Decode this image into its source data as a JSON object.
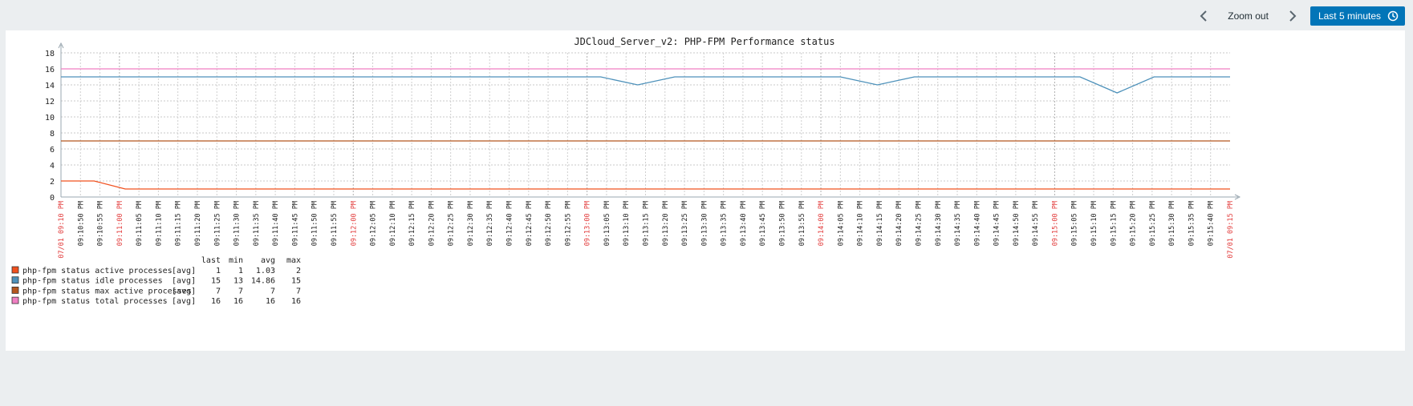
{
  "toolbar": {
    "zoom_out_label": "Zoom out",
    "time_range_label": "Last 5 minutes",
    "prev_icon": "chevron-left-icon",
    "next_icon": "chevron-right-icon",
    "clock_icon": "clock-icon"
  },
  "chart_data": {
    "type": "line",
    "title": "JDCloud_Server_v2: PHP-FPM Performance status",
    "ylim": [
      0,
      18
    ],
    "yticks": [
      "0",
      "2",
      "4",
      "6",
      "8",
      "10",
      "12",
      "14",
      "16",
      "18"
    ],
    "grid": true,
    "x_labels": [
      {
        "label": "07/01 09:10 PM",
        "major": true
      },
      {
        "label": "09:10:50 PM",
        "major": false
      },
      {
        "label": "09:10:55 PM",
        "major": false
      },
      {
        "label": "09:11:00 PM",
        "major": true
      },
      {
        "label": "09:11:05 PM",
        "major": false
      },
      {
        "label": "09:11:10 PM",
        "major": false
      },
      {
        "label": "09:11:15 PM",
        "major": false
      },
      {
        "label": "09:11:20 PM",
        "major": false
      },
      {
        "label": "09:11:25 PM",
        "major": false
      },
      {
        "label": "09:11:30 PM",
        "major": false
      },
      {
        "label": "09:11:35 PM",
        "major": false
      },
      {
        "label": "09:11:40 PM",
        "major": false
      },
      {
        "label": "09:11:45 PM",
        "major": false
      },
      {
        "label": "09:11:50 PM",
        "major": false
      },
      {
        "label": "09:11:55 PM",
        "major": false
      },
      {
        "label": "09:12:00 PM",
        "major": true
      },
      {
        "label": "09:12:05 PM",
        "major": false
      },
      {
        "label": "09:12:10 PM",
        "major": false
      },
      {
        "label": "09:12:15 PM",
        "major": false
      },
      {
        "label": "09:12:20 PM",
        "major": false
      },
      {
        "label": "09:12:25 PM",
        "major": false
      },
      {
        "label": "09:12:30 PM",
        "major": false
      },
      {
        "label": "09:12:35 PM",
        "major": false
      },
      {
        "label": "09:12:40 PM",
        "major": false
      },
      {
        "label": "09:12:45 PM",
        "major": false
      },
      {
        "label": "09:12:50 PM",
        "major": false
      },
      {
        "label": "09:12:55 PM",
        "major": false
      },
      {
        "label": "09:13:00 PM",
        "major": true
      },
      {
        "label": "09:13:05 PM",
        "major": false
      },
      {
        "label": "09:13:10 PM",
        "major": false
      },
      {
        "label": "09:13:15 PM",
        "major": false
      },
      {
        "label": "09:13:20 PM",
        "major": false
      },
      {
        "label": "09:13:25 PM",
        "major": false
      },
      {
        "label": "09:13:30 PM",
        "major": false
      },
      {
        "label": "09:13:35 PM",
        "major": false
      },
      {
        "label": "09:13:40 PM",
        "major": false
      },
      {
        "label": "09:13:45 PM",
        "major": false
      },
      {
        "label": "09:13:50 PM",
        "major": false
      },
      {
        "label": "09:13:55 PM",
        "major": false
      },
      {
        "label": "09:14:00 PM",
        "major": true
      },
      {
        "label": "09:14:05 PM",
        "major": false
      },
      {
        "label": "09:14:10 PM",
        "major": false
      },
      {
        "label": "09:14:15 PM",
        "major": false
      },
      {
        "label": "09:14:20 PM",
        "major": false
      },
      {
        "label": "09:14:25 PM",
        "major": false
      },
      {
        "label": "09:14:30 PM",
        "major": false
      },
      {
        "label": "09:14:35 PM",
        "major": false
      },
      {
        "label": "09:14:40 PM",
        "major": false
      },
      {
        "label": "09:14:45 PM",
        "major": false
      },
      {
        "label": "09:14:50 PM",
        "major": false
      },
      {
        "label": "09:14:55 PM",
        "major": false
      },
      {
        "label": "09:15:00 PM",
        "major": true
      },
      {
        "label": "09:15:05 PM",
        "major": false
      },
      {
        "label": "09:15:10 PM",
        "major": false
      },
      {
        "label": "09:15:15 PM",
        "major": false
      },
      {
        "label": "09:15:20 PM",
        "major": false
      },
      {
        "label": "09:15:25 PM",
        "major": false
      },
      {
        "label": "09:15:30 PM",
        "major": false
      },
      {
        "label": "09:15:35 PM",
        "major": false
      },
      {
        "label": "09:15:40 PM",
        "major": false
      },
      {
        "label": "07/01 09:15 PM",
        "major": true
      }
    ],
    "series": [
      {
        "name": "php-fpm status active processes",
        "color": "#f0501e",
        "func": "[avg]",
        "last": "1",
        "min": "1",
        "avg": "1.03",
        "max": "2",
        "points": [
          [
            0,
            2
          ],
          [
            1.7,
            2
          ],
          [
            3.3,
            1
          ],
          [
            60,
            1
          ]
        ]
      },
      {
        "name": "php-fpm status idle processes",
        "color": "#4d91ba",
        "func": "[avg]",
        "last": "15",
        "min": "13",
        "avg": "14.86",
        "max": "15",
        "points": [
          [
            0,
            15
          ],
          [
            27.7,
            15
          ],
          [
            29.6,
            14
          ],
          [
            31.5,
            15
          ],
          [
            40,
            15
          ],
          [
            41.9,
            14
          ],
          [
            43.8,
            15
          ],
          [
            52.3,
            15
          ],
          [
            54.2,
            13
          ],
          [
            56.1,
            15
          ],
          [
            60,
            15
          ]
        ]
      },
      {
        "name": "php-fpm status max active processes",
        "color": "#b4561e",
        "func": "[avg]",
        "last": "7",
        "min": "7",
        "avg": "7",
        "max": "7",
        "points": [
          [
            0,
            7
          ],
          [
            60,
            7
          ]
        ]
      },
      {
        "name": "php-fpm status total processes",
        "color": "#f07fc2",
        "func": "[avg]",
        "last": "16",
        "min": "16",
        "avg": "16",
        "max": "16",
        "points": [
          [
            0,
            16
          ],
          [
            60,
            16
          ]
        ]
      }
    ],
    "legend": {
      "columns": [
        "last",
        "min",
        "avg",
        "max"
      ],
      "placement": "bottom-left"
    }
  }
}
